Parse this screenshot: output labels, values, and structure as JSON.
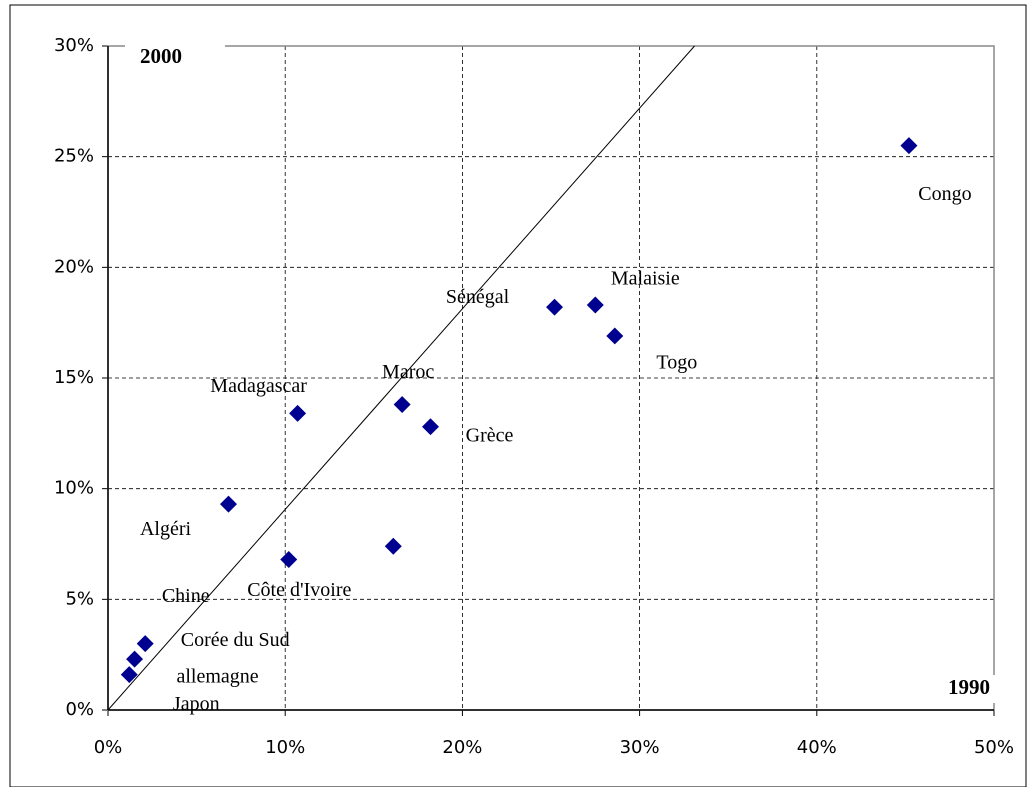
{
  "chart_data": {
    "type": "scatter",
    "x_label": "1990",
    "y_label": "2000",
    "labels": [
      "Congo",
      "Malaisie",
      "Sénégal",
      "Togo",
      "Maroc",
      "Grèce",
      "Madagascar",
      "Algéri",
      "Chine",
      "Côte d'Ivoire",
      "Corée du Sud",
      "allemagne",
      "Japon"
    ],
    "x": [
      45.2,
      27.5,
      25.2,
      28.6,
      16.6,
      18.2,
      10.7,
      6.8,
      10.2,
      16.1,
      2.1,
      1.5,
      1.2
    ],
    "y": [
      25.5,
      18.3,
      18.2,
      16.9,
      13.8,
      12.8,
      13.4,
      9.3,
      6.8,
      7.4,
      3.0,
      2.3,
      1.6
    ],
    "color": "#000090",
    "reference_line": {
      "x": [
        0,
        33.1
      ],
      "y": [
        0,
        30
      ]
    },
    "xlim": [
      0,
      50
    ],
    "ylim": [
      0,
      30
    ],
    "xticks": [
      {
        "value": 0,
        "label": "0%"
      },
      {
        "value": 10,
        "label": "10%"
      },
      {
        "value": 20,
        "label": "20%"
      },
      {
        "value": 30,
        "label": "30%"
      },
      {
        "value": 40,
        "label": "40%"
      },
      {
        "value": 50,
        "label": "50%"
      }
    ],
    "yticks": [
      {
        "value": 0,
        "label": "0%"
      },
      {
        "value": 5,
        "label": "5%"
      },
      {
        "value": 10,
        "label": "10%"
      },
      {
        "value": 15,
        "label": "15%"
      },
      {
        "value": 20,
        "label": "20%"
      },
      {
        "value": 25,
        "label": "25%"
      },
      {
        "value": 30,
        "label": "30%"
      }
    ],
    "grid": true
  }
}
